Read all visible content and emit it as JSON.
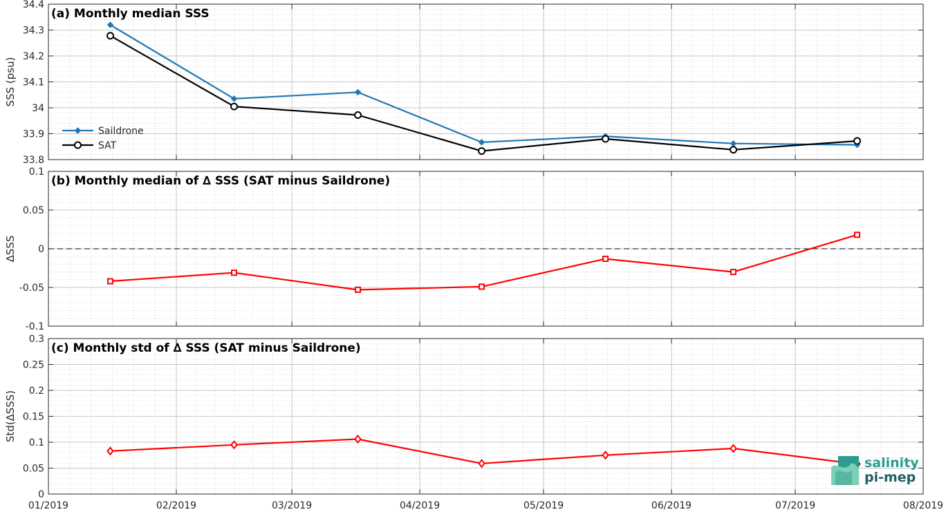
{
  "chart_data": [
    {
      "type": "line",
      "title": "(a) Monthly median SSS",
      "ylabel": "SSS (psu)",
      "xlabel": "",
      "x": [
        "2019-01-16",
        "2019-02-15",
        "2019-03-17",
        "2019-04-16",
        "2019-05-16",
        "2019-06-16",
        "2019-07-16"
      ],
      "series": [
        {
          "name": "Saildrone",
          "color": "#1f77b4",
          "marker": "diamond-filled",
          "values": [
            34.32,
            34.035,
            34.06,
            33.867,
            33.89,
            33.862,
            33.857
          ]
        },
        {
          "name": "SAT",
          "color": "#000000",
          "marker": "circle-open",
          "values": [
            34.278,
            34.005,
            33.972,
            33.833,
            33.88,
            33.838,
            33.872
          ]
        }
      ],
      "ylim": [
        33.8,
        34.4
      ],
      "yticks": [
        "33.8",
        "33.9",
        "34",
        "34.1",
        "34.2",
        "34.3",
        "34.4"
      ],
      "grid": true,
      "legend_position": "bottom-left"
    },
    {
      "type": "line",
      "title": "(b) Monthly median of ∆ SSS (SAT minus Saildrone)",
      "ylabel": "∆SSS",
      "xlabel": "",
      "x": [
        "2019-01-16",
        "2019-02-15",
        "2019-03-17",
        "2019-04-16",
        "2019-05-16",
        "2019-06-16",
        "2019-07-16"
      ],
      "series": [
        {
          "color": "#ff0000",
          "marker": "square-open",
          "values": [
            -0.042,
            -0.031,
            -0.053,
            -0.049,
            -0.013,
            -0.03,
            0.018
          ]
        }
      ],
      "reference_line": 0,
      "ylim": [
        -0.1,
        0.1
      ],
      "yticks": [
        "-0.1",
        "-0.05",
        "0",
        "0.05",
        "0.1"
      ],
      "grid": true
    },
    {
      "type": "line",
      "title": "(c) Monthly std of ∆ SSS (SAT minus Saildrone)",
      "ylabel": "Std(∆SSS)",
      "xlabel": "",
      "x": [
        "2019-01-16",
        "2019-02-15",
        "2019-03-17",
        "2019-04-16",
        "2019-05-16",
        "2019-06-16",
        "2019-07-16"
      ],
      "series": [
        {
          "color": "#ff0000",
          "marker": "diamond-open",
          "values": [
            0.083,
            0.095,
            0.106,
            0.059,
            0.075,
            0.088,
            0.058
          ]
        }
      ],
      "ylim": [
        0,
        0.3
      ],
      "yticks": [
        "0",
        "0.05",
        "0.1",
        "0.15",
        "0.2",
        "0.25",
        "0.3"
      ],
      "grid": true
    }
  ],
  "x_axis": {
    "range": [
      "2019-01-01",
      "2019-08-01"
    ],
    "ticks": [
      {
        "date": "2019-01-01",
        "label": "01/2019"
      },
      {
        "date": "2019-02-01",
        "label": "02/2019"
      },
      {
        "date": "2019-03-01",
        "label": "03/2019"
      },
      {
        "date": "2019-04-01",
        "label": "04/2019"
      },
      {
        "date": "2019-05-01",
        "label": "05/2019"
      },
      {
        "date": "2019-06-01",
        "label": "06/2019"
      },
      {
        "date": "2019-07-01",
        "label": "07/2019"
      },
      {
        "date": "2019-08-01",
        "label": "08/2019"
      }
    ]
  },
  "logo": {
    "line1": "salinity",
    "line2": "pi-mep"
  }
}
